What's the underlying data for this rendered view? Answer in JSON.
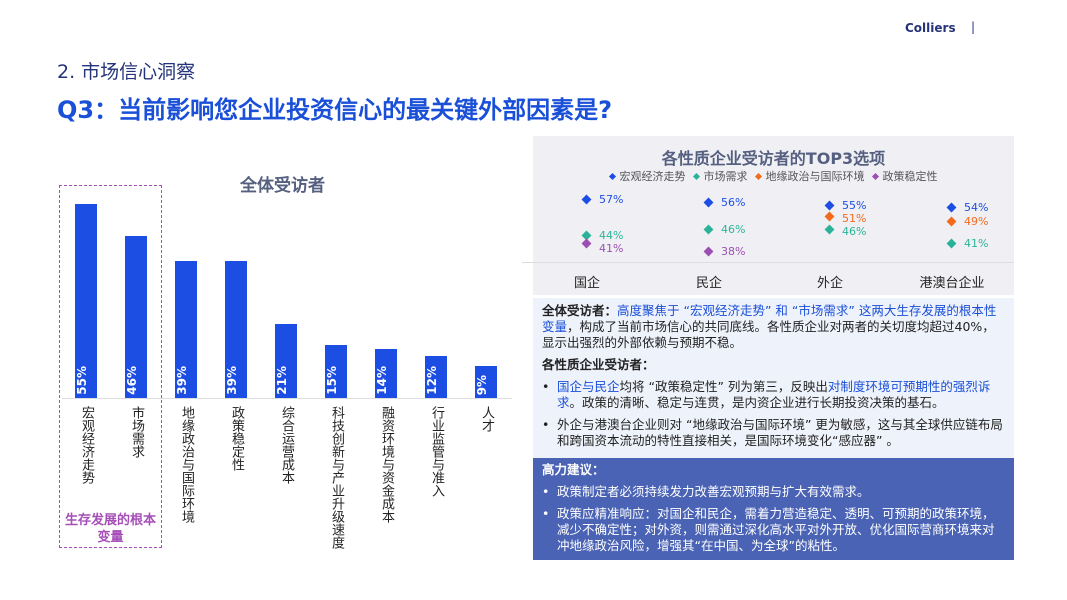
{
  "header": {
    "brand": "Colliers",
    "brand_sep": "|",
    "section": "2. 市场信心洞察",
    "question": "Q3：当前影响您企业投资信心的最关键外部因素是?"
  },
  "left_chart_label": "生存发展的根本变量",
  "chart_data": [
    {
      "type": "bar",
      "title": "全体受访者",
      "categories": [
        "宏观经济走势",
        "市场需求",
        "地缘政治与国际环境",
        "政策稳定性",
        "综合运营成本",
        "科技创新与产业升级速度",
        "融资环境与资金成本",
        "行业监管与准入",
        "人才"
      ],
      "values": [
        55,
        46,
        39,
        39,
        21,
        15,
        14,
        12,
        9
      ],
      "value_labels": [
        "55%",
        "46%",
        "39%",
        "39%",
        "21%",
        "15%",
        "14%",
        "12%",
        "9%"
      ],
      "color": "#1d4ee3",
      "ylim": [
        0,
        60
      ]
    },
    {
      "type": "scatter",
      "title": "各性质企业受访者的TOP3选项",
      "categories": [
        "国企",
        "民企",
        "外企",
        "港澳台企业"
      ],
      "legend_position": "top",
      "series": [
        {
          "name": "宏观经济走势",
          "color": "#1d4ee3",
          "values": [
            57,
            56,
            55,
            54
          ]
        },
        {
          "name": "市场需求",
          "color": "#2bb39a",
          "values": [
            44,
            46,
            46,
            41
          ]
        },
        {
          "name": "地缘政治与国际环境",
          "color": "#f26b1d",
          "values": [
            null,
            null,
            51,
            49
          ]
        },
        {
          "name": "政策稳定性",
          "color": "#9c4fb3",
          "values": [
            41,
            38,
            null,
            null
          ]
        }
      ]
    }
  ],
  "analysis": {
    "p1_head": "全体受访者：",
    "p1_hl": "高度聚焦于 “宏观经济走势” 和 “市场需求” 这两大生存发展的根本性变量",
    "p1_rest": "，构成了当前市场信心的共同底线。各性质企业对两者的关切度均超过40%，显示出强烈的外部依赖与预期不稳。",
    "p2_head": "各性质企业受访者：",
    "b1_hl1": "国企与民企",
    "b1_mid": "均将 “政策稳定性” 列为第三，反映出",
    "b1_hl2": "对制度环境可预期性的强烈诉求",
    "b1_rest": "。政策的清晰、稳定与连贯，是内资企业进行长期投资决策的基石。",
    "b2": "外企与港澳台企业则对 “地缘政治与国际环境” 更为敏感，这与其全球供应链布局和跨国资本流动的特性直接相关，是国际环境变化“感应器” 。"
  },
  "recommendation": {
    "head": "高力建议：",
    "items": [
      "政策制定者必须持续发力改善宏观预期与扩大有效需求。",
      "政策应精准响应：对国企和民企，需着力营造稳定、透明、可预期的政策环境，减少不确定性；对外资，则需通过深化高水平对外开放、优化国际营商环境来对冲地缘政治风险，增强其“在中国、为全球”的粘性。"
    ]
  }
}
